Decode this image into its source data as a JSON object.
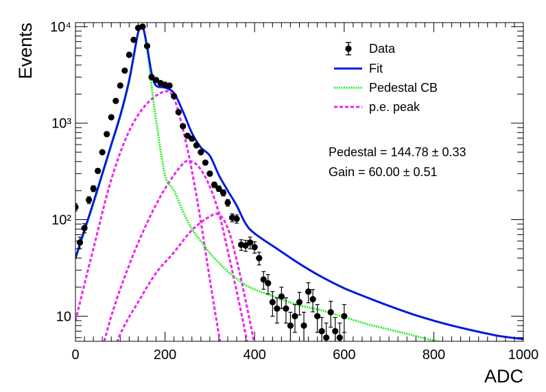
{
  "chart_data": {
    "type": "scatter",
    "title": "",
    "xlabel": "ADC",
    "ylabel": "Events",
    "xlim": [
      0,
      1000
    ],
    "ylim": [
      5.5,
      11000
    ],
    "yscale": "log",
    "grid": false,
    "legend_position": "top-right",
    "x_ticks": [
      0,
      200,
      400,
      600,
      800,
      1000
    ],
    "x_tick_labels": [
      "0",
      "200",
      "400",
      "600",
      "800",
      "1000"
    ],
    "y_ticks": [
      10,
      100,
      1000,
      10000
    ],
    "y_tick_labels": [
      "10",
      "10²",
      "10³",
      "10⁴"
    ],
    "series": [
      {
        "name": "Data",
        "style": "markers-with-errorbars",
        "color": "#000000",
        "x": [
          0,
          10,
          20,
          30,
          40,
          50,
          60,
          70,
          80,
          90,
          100,
          110,
          120,
          130,
          140,
          150,
          160,
          170,
          180,
          190,
          200,
          210,
          220,
          230,
          240,
          250,
          260,
          270,
          280,
          290,
          300,
          310,
          320,
          330,
          340,
          350,
          360,
          370,
          380,
          390,
          400,
          410,
          420,
          430,
          440,
          450,
          460,
          470,
          480,
          490,
          500,
          510,
          520,
          530,
          540,
          550,
          560,
          570,
          580,
          590,
          600
        ],
        "y": [
          135,
          58,
          82,
          160,
          210,
          320,
          500,
          770,
          1150,
          1700,
          2450,
          3500,
          5100,
          7300,
          9700,
          10000,
          6300,
          3000,
          2800,
          2600,
          2500,
          2450,
          1900,
          1300,
          930,
          740,
          690,
          590,
          500,
          390,
          300,
          230,
          210,
          190,
          150,
          105,
          102,
          55,
          54,
          58,
          52,
          40,
          24,
          22,
          14,
          12,
          16,
          12,
          8,
          10,
          14,
          8,
          18,
          15,
          10,
          7,
          6,
          11,
          7,
          6,
          10
        ],
        "err": [
          12,
          8,
          9,
          13,
          15,
          18,
          22,
          28,
          34,
          41,
          50,
          59,
          71,
          85,
          98,
          100,
          79,
          55,
          53,
          51,
          50,
          49,
          44,
          36,
          30,
          27,
          26,
          24,
          22,
          20,
          17,
          15,
          14,
          14,
          12,
          10,
          10,
          7,
          7,
          8,
          7,
          6,
          5,
          5,
          4,
          3.5,
          4,
          3.5,
          3,
          3.2,
          3.7,
          3,
          4.2,
          3.9,
          3.2,
          2.7,
          2.5,
          3.3,
          2.7,
          2.5,
          3.2
        ]
      },
      {
        "name": "Fit",
        "style": "solid-line",
        "color": "#0018e0",
        "x": [
          0,
          20,
          40,
          60,
          80,
          100,
          120,
          140,
          150,
          160,
          170,
          180,
          200,
          220,
          240,
          260,
          280,
          300,
          320,
          340,
          360,
          380,
          400,
          450,
          500,
          550,
          600,
          650,
          700,
          750,
          800,
          850,
          900,
          950,
          1000
        ],
        "y": [
          40,
          78,
          150,
          300,
          600,
          1200,
          2800,
          8700,
          10000,
          6200,
          3300,
          2450,
          2330,
          2050,
          1320,
          790,
          560,
          460,
          290,
          200,
          140,
          91,
          72,
          50,
          35,
          25.5,
          19.5,
          15.7,
          12.8,
          10.6,
          9,
          7.8,
          6.9,
          6.2,
          5.8
        ]
      },
      {
        "name": "Pedestal CB",
        "style": "dotted-line",
        "color": "#22ee22",
        "x": [
          0,
          20,
          40,
          60,
          80,
          100,
          120,
          140,
          150,
          160,
          170,
          180,
          200,
          220,
          240,
          260,
          280,
          300,
          320,
          340,
          360,
          380,
          400,
          450,
          500,
          550,
          600,
          650,
          700,
          750,
          800,
          850
        ],
        "y": [
          39,
          75,
          145,
          290,
          580,
          1150,
          2700,
          8500,
          10000,
          5600,
          2400,
          1080,
          290,
          200,
          122,
          80,
          60,
          45,
          36,
          29,
          24.5,
          21,
          19,
          15.5,
          13,
          11.5,
          9.8,
          8.3,
          7.3,
          6.4,
          5.6,
          5.1
        ]
      },
      {
        "name": "p.e. peak",
        "style": "dashed-line",
        "color": "#ee22ee",
        "components": [
          {
            "x": [
              0,
              40,
              80,
              120,
              160,
              200,
              220,
              240,
              260,
              280,
              300,
              320,
              340
            ],
            "y": [
              9,
              50,
              260,
              830,
              1600,
              2130,
              1800,
              860,
              320,
              95,
              24,
              6.5,
              2
            ]
          },
          {
            "x": [
              40,
              80,
              120,
              160,
              200,
              240,
              260,
              280,
              300,
              320,
              340,
              360,
              380,
              400
            ],
            "y": [
              2,
              10,
              34,
              93,
              210,
              380,
              400,
              330,
              220,
              118,
              48,
              18,
              6.5,
              2
            ]
          },
          {
            "x": [
              60,
              100,
              140,
              180,
              220,
              260,
              300,
              320,
              340,
              360,
              380,
              400,
              420
            ],
            "y": [
              2,
              6.5,
              14,
              28,
              46,
              78,
              108,
              113,
              82,
              38,
              14.5,
              5,
              1.5
            ]
          }
        ]
      }
    ],
    "annotations": [
      "Pedestal = 144.78 ± 0.33",
      "Gain = 60.00 ± 0.51"
    ]
  }
}
